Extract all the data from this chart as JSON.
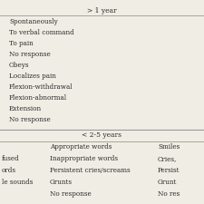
{
  "title_row": "> 1 year",
  "section2_header": "< 2-5 years",
  "col1_rows": [
    "Spontaneously",
    "To verbal command",
    "To pain",
    "No response",
    "Obeys",
    "Localizes pain",
    "Flexion-withdrawal",
    "Flexion-abnormal",
    "Extension",
    "No response"
  ],
  "bottom_col1": [
    "",
    "fused",
    "ords",
    "le sounds",
    ""
  ],
  "bottom_col2": [
    "Appropriate words",
    "Inappropriate words",
    "Persistent cries/screams",
    "Grunts",
    "No response"
  ],
  "bottom_col3": [
    "Smiles",
    "Cries,",
    "Persist",
    "Grunt",
    "No res"
  ],
  "bg_color": "#f0ede4",
  "text_color": "#2b2b2b",
  "line_color": "#999999",
  "font_size": 5.2,
  "header_font_size": 5.5
}
